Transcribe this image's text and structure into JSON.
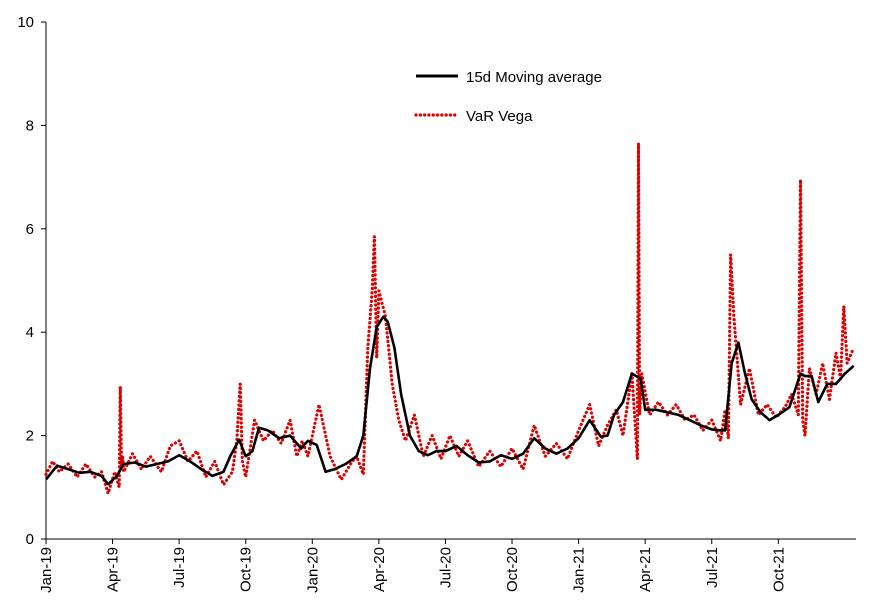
{
  "chart_data": {
    "type": "line",
    "title": "",
    "xlabel": "",
    "ylabel": "",
    "ylim": [
      0,
      10
    ],
    "y_ticks": [
      "0",
      "2",
      "4",
      "6",
      "8",
      "10"
    ],
    "x_ticks": [
      "Jan-19",
      "Apr-19",
      "Jul-19",
      "Oct-19",
      "Jan-20",
      "Apr-20",
      "Jul-20",
      "Oct-20",
      "Jan-21",
      "Apr-21",
      "Jul-21",
      "Oct-21"
    ],
    "x_tick_months": [
      0,
      3,
      6,
      9,
      12,
      15,
      18,
      21,
      24,
      27,
      30,
      33
    ],
    "xlim_months": [
      0,
      36.5
    ],
    "grid": false,
    "legend_position": "top-center",
    "series": [
      {
        "name": "15d Moving average",
        "color": "#000000",
        "style": "solid",
        "x": [
          0,
          0.5,
          1.0,
          1.5,
          2.0,
          2.5,
          2.8,
          3.2,
          3.5,
          4.0,
          4.5,
          5.0,
          5.5,
          6.0,
          6.5,
          7.0,
          7.5,
          8.0,
          8.3,
          8.7,
          9.0,
          9.3,
          9.6,
          10.0,
          10.5,
          11.0,
          11.5,
          11.8,
          12.2,
          12.6,
          13.0,
          13.5,
          14.0,
          14.3,
          14.6,
          14.9,
          15.2,
          15.4,
          15.7,
          16.0,
          16.4,
          16.8,
          17.2,
          17.6,
          18.0,
          18.5,
          19.0,
          19.5,
          20.0,
          20.5,
          21.0,
          21.5,
          22.0,
          22.5,
          23.0,
          23.5,
          24.0,
          24.5,
          25.0,
          25.3,
          25.6,
          26.0,
          26.4,
          26.8,
          27.0,
          27.5,
          28.0,
          28.5,
          29.0,
          29.5,
          30.0,
          30.4,
          30.6,
          30.9,
          31.2,
          31.5,
          31.8,
          32.2,
          32.6,
          33.0,
          33.5,
          34.0,
          34.2,
          34.5,
          34.8,
          35.2,
          35.6,
          36.0,
          36.4
        ],
        "values": [
          1.15,
          1.42,
          1.35,
          1.28,
          1.3,
          1.22,
          1.06,
          1.22,
          1.45,
          1.48,
          1.4,
          1.45,
          1.5,
          1.62,
          1.5,
          1.35,
          1.22,
          1.3,
          1.6,
          1.92,
          1.6,
          1.7,
          2.15,
          2.1,
          1.95,
          2.0,
          1.75,
          1.9,
          1.82,
          1.3,
          1.35,
          1.45,
          1.6,
          2.0,
          3.3,
          4.1,
          4.3,
          4.2,
          3.7,
          2.8,
          2.0,
          1.7,
          1.62,
          1.7,
          1.7,
          1.8,
          1.62,
          1.48,
          1.5,
          1.62,
          1.55,
          1.65,
          1.95,
          1.75,
          1.65,
          1.75,
          1.95,
          2.3,
          1.98,
          2.0,
          2.4,
          2.65,
          3.2,
          3.1,
          2.5,
          2.5,
          2.45,
          2.4,
          2.3,
          2.2,
          2.12,
          2.1,
          2.1,
          3.4,
          3.8,
          3.2,
          2.7,
          2.45,
          2.3,
          2.4,
          2.55,
          3.2,
          3.15,
          3.15,
          2.65,
          3.0,
          3.0,
          3.2,
          3.35
        ]
      },
      {
        "name": "VaR Vega",
        "color": "#e00000",
        "style": "dotted",
        "x": [
          0,
          0.3,
          0.6,
          1.0,
          1.4,
          1.8,
          2.2,
          2.5,
          2.8,
          3.1,
          3.3,
          3.35,
          3.4,
          3.45,
          3.5,
          3.9,
          4.3,
          4.7,
          5.2,
          5.6,
          6.0,
          6.4,
          6.8,
          7.2,
          7.6,
          8.0,
          8.4,
          8.6,
          8.75,
          8.85,
          9.0,
          9.4,
          9.8,
          10.2,
          10.6,
          11.0,
          11.3,
          11.55,
          11.8,
          12.3,
          12.8,
          13.3,
          13.8,
          14.0,
          14.3,
          14.5,
          14.7,
          14.8,
          14.9,
          15.0,
          15.3,
          15.6,
          15.9,
          16.2,
          16.6,
          17.0,
          17.4,
          17.8,
          18.2,
          18.6,
          19.0,
          19.5,
          20.0,
          20.5,
          21.0,
          21.5,
          22.0,
          22.5,
          23.0,
          23.5,
          24.0,
          24.5,
          24.9,
          25.3,
          25.7,
          26.0,
          26.4,
          26.65,
          26.7,
          26.75,
          26.85,
          27.2,
          27.6,
          28.0,
          28.4,
          28.8,
          29.2,
          29.6,
          30.0,
          30.4,
          30.6,
          30.75,
          30.85,
          31.0,
          31.3,
          31.7,
          32.1,
          32.5,
          32.9,
          33.3,
          33.6,
          33.9,
          34.0,
          34.1,
          34.2,
          34.4,
          34.7,
          35.0,
          35.3,
          35.6,
          35.8,
          35.95,
          36.1,
          36.4
        ],
        "values": [
          1.25,
          1.5,
          1.3,
          1.45,
          1.2,
          1.45,
          1.2,
          1.3,
          0.88,
          1.3,
          1.0,
          2.95,
          1.4,
          1.6,
          1.3,
          1.65,
          1.35,
          1.6,
          1.3,
          1.8,
          1.9,
          1.5,
          1.7,
          1.2,
          1.5,
          1.05,
          1.3,
          1.9,
          3.0,
          1.5,
          1.2,
          2.3,
          1.9,
          2.1,
          1.85,
          2.3,
          1.6,
          1.9,
          1.6,
          2.6,
          1.6,
          1.15,
          1.5,
          1.6,
          1.25,
          3.7,
          4.8,
          5.85,
          3.5,
          4.8,
          4.3,
          3.0,
          2.3,
          1.9,
          2.4,
          1.6,
          2.0,
          1.55,
          2.0,
          1.6,
          1.9,
          1.4,
          1.7,
          1.4,
          1.75,
          1.35,
          2.2,
          1.6,
          1.85,
          1.55,
          2.1,
          2.6,
          1.8,
          2.2,
          2.5,
          2.0,
          3.2,
          1.55,
          7.65,
          2.4,
          3.2,
          2.4,
          2.65,
          2.4,
          2.6,
          2.3,
          2.4,
          2.1,
          2.3,
          1.9,
          2.5,
          1.95,
          5.5,
          4.3,
          2.6,
          3.3,
          2.4,
          2.6,
          2.35,
          2.55,
          2.8,
          2.4,
          6.95,
          2.3,
          2.0,
          3.3,
          2.8,
          3.4,
          2.7,
          3.6,
          3.1,
          4.5,
          3.4,
          3.7
        ]
      }
    ]
  }
}
